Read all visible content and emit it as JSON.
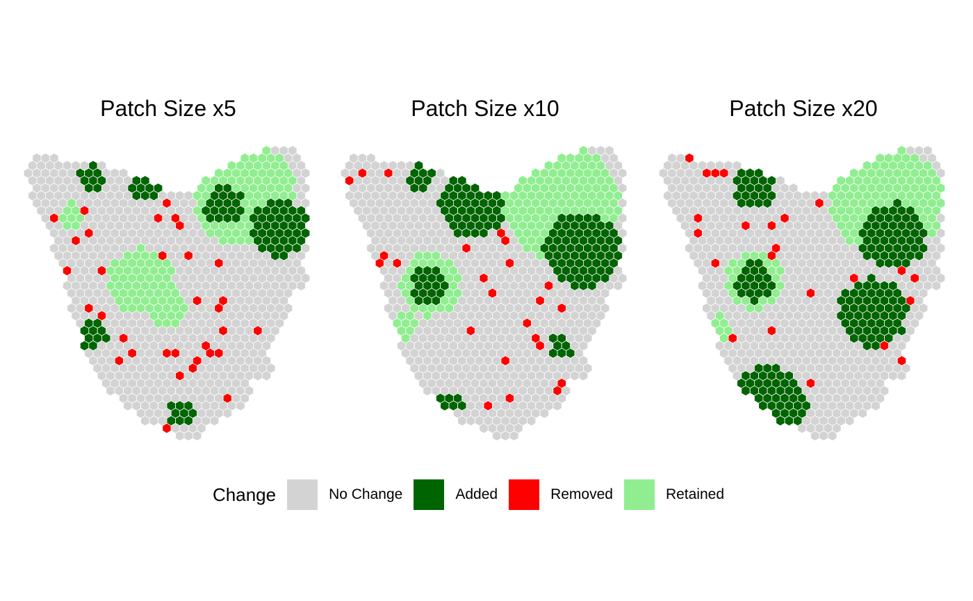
{
  "panels": [
    {
      "title": "Patch Size x5"
    },
    {
      "title": "Patch Size x10"
    },
    {
      "title": "Patch Size x20"
    }
  ],
  "legend": {
    "title": "Change",
    "items": [
      {
        "label": "No Change",
        "color": "#d3d3d3",
        "icon": "square-swatch"
      },
      {
        "label": "Added",
        "color": "#006400",
        "icon": "square-swatch"
      },
      {
        "label": "Removed",
        "color": "#ff0000",
        "icon": "square-swatch"
      },
      {
        "label": "Retained",
        "color": "#90ee90",
        "icon": "square-swatch"
      }
    ]
  }
}
